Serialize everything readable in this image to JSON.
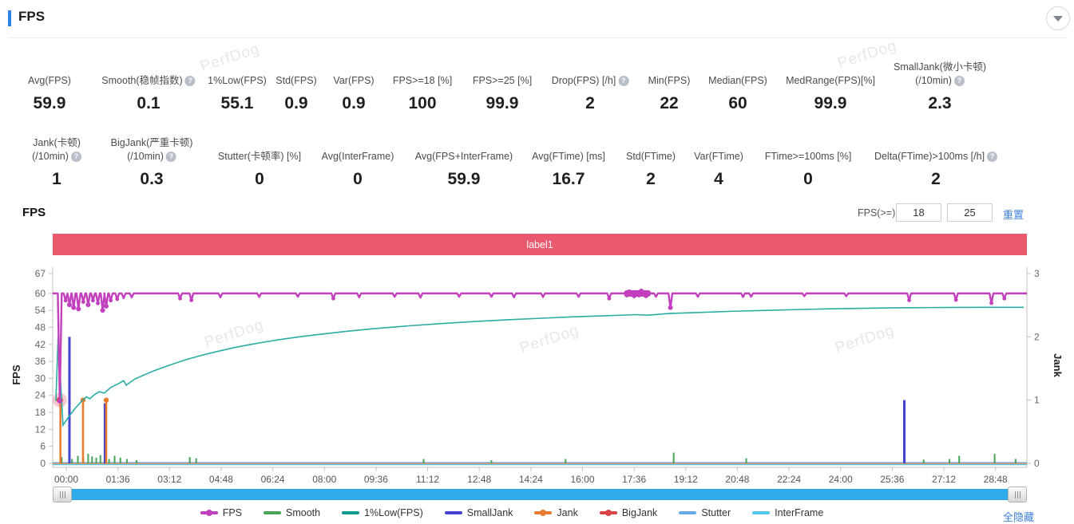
{
  "header": {
    "title": "FPS",
    "collapse_icon": "chevron-down-icon"
  },
  "watermark": "PerfDog",
  "stats": {
    "row1": [
      {
        "lines": [
          "Avg(FPS)"
        ],
        "help": false,
        "value": "59.9"
      },
      {
        "lines": [
          "Smooth(稳帧指数)"
        ],
        "help": true,
        "value": "0.1"
      },
      {
        "lines": [
          "1%Low(FPS)"
        ],
        "help": false,
        "value": "55.1"
      },
      {
        "lines": [
          "Std(FPS)"
        ],
        "help": false,
        "value": "0.9"
      },
      {
        "lines": [
          "Var(FPS)"
        ],
        "help": false,
        "value": "0.9"
      },
      {
        "lines": [
          "FPS>=18 [%]"
        ],
        "help": false,
        "value": "100"
      },
      {
        "lines": [
          "FPS>=25 [%]"
        ],
        "help": false,
        "value": "99.9"
      },
      {
        "lines": [
          "Drop(FPS) [/h]"
        ],
        "help": true,
        "value": "2"
      },
      {
        "lines": [
          "Min(FPS)"
        ],
        "help": false,
        "value": "22"
      },
      {
        "lines": [
          "Median(FPS)"
        ],
        "help": false,
        "value": "60"
      },
      {
        "lines": [
          "MedRange(FPS)[%]"
        ],
        "help": false,
        "value": "99.9"
      },
      {
        "lines": [
          "SmallJank(微小卡顿)",
          "(/10min)"
        ],
        "help": true,
        "value": "2.3"
      }
    ],
    "row2": [
      {
        "lines": [
          "Jank(卡顿)",
          "(/10min)"
        ],
        "help": true,
        "value": "1"
      },
      {
        "lines": [
          "BigJank(严重卡顿)",
          "(/10min)"
        ],
        "help": true,
        "value": "0.3"
      },
      {
        "lines": [
          "Stutter(卡顿率) [%]"
        ],
        "help": false,
        "value": "0"
      },
      {
        "lines": [
          "Avg(InterFrame)"
        ],
        "help": false,
        "value": "0"
      },
      {
        "lines": [
          "Avg(FPS+InterFrame)"
        ],
        "help": false,
        "value": "59.9"
      },
      {
        "lines": [
          "Avg(FTime) [ms]"
        ],
        "help": false,
        "value": "16.7"
      },
      {
        "lines": [
          "Std(FTime)"
        ],
        "help": false,
        "value": "2"
      },
      {
        "lines": [
          "Var(FTime)"
        ],
        "help": false,
        "value": "4"
      },
      {
        "lines": [
          "FTime>=100ms [%]"
        ],
        "help": false,
        "value": "0"
      },
      {
        "lines": [
          "Delta(FTime)>100ms [/h]"
        ],
        "help": true,
        "value": "2"
      }
    ]
  },
  "chart_section": {
    "title": "FPS",
    "filter_label": "FPS(>=)",
    "filter_min": "18",
    "filter_max": "25",
    "reset_label": "重置",
    "banner_label": "label1",
    "hide_all_label": "全隐藏"
  },
  "legend": [
    {
      "label": "FPS",
      "color": "#c23fbe",
      "dot": true
    },
    {
      "label": "Smooth",
      "color": "#48a357",
      "dot": false
    },
    {
      "label": "1%Low(FPS)",
      "color": "#12998f",
      "dot": false
    },
    {
      "label": "SmallJank",
      "color": "#4343d0",
      "dot": false
    },
    {
      "label": "Jank",
      "color": "#e87a2e",
      "dot": true
    },
    {
      "label": "BigJank",
      "color": "#d94343",
      "dot": true
    },
    {
      "label": "Stutter",
      "color": "#64a8e8",
      "dot": false
    },
    {
      "label": "InterFrame",
      "color": "#4cc8e4",
      "dot": false
    }
  ],
  "chart_data": {
    "type": "line",
    "title": "FPS",
    "x_axis": {
      "unit": "mm:ss",
      "ticks": [
        "00:00",
        "01:36",
        "03:12",
        "04:48",
        "06:24",
        "08:00",
        "09:36",
        "11:12",
        "12:48",
        "14:24",
        "16:00",
        "17:36",
        "19:12",
        "20:48",
        "22:24",
        "24:00",
        "25:36",
        "27:12",
        "28:48"
      ]
    },
    "y_left": {
      "label": "FPS",
      "ticks": [
        0,
        6,
        12,
        18,
        24,
        30,
        36,
        42,
        48,
        54,
        60,
        67
      ],
      "range": [
        0,
        67
      ]
    },
    "y_right": {
      "label": "Jank",
      "ticks": [
        0,
        1,
        2,
        3
      ],
      "range": [
        0,
        3
      ]
    },
    "grid": false,
    "legend_position": "bottom",
    "series": [
      {
        "name": "FPS",
        "axis": "left",
        "color": "#c23fbe",
        "baseline": 60,
        "dips": [
          [
            0.12,
            22
          ],
          [
            0.3,
            57.5
          ],
          [
            0.42,
            56
          ],
          [
            0.55,
            55
          ],
          [
            0.7,
            54.5
          ],
          [
            0.85,
            57
          ],
          [
            1.0,
            56
          ],
          [
            1.15,
            57.5
          ],
          [
            1.3,
            56.5
          ],
          [
            1.45,
            54
          ],
          [
            1.56,
            55.5
          ],
          [
            1.7,
            57.5
          ],
          [
            1.9,
            58
          ],
          [
            2.1,
            58.3
          ],
          [
            2.35,
            58.6
          ],
          [
            3.85,
            58.2
          ],
          [
            4.2,
            57.6
          ],
          [
            5.1,
            58.6
          ],
          [
            6.3,
            58.7
          ],
          [
            7.5,
            58.8
          ],
          [
            8.6,
            58.2
          ],
          [
            9.4,
            58.6
          ],
          [
            10.5,
            58.8
          ],
          [
            11.3,
            58.5
          ],
          [
            12.5,
            58.8
          ],
          [
            13.5,
            58.8
          ],
          [
            14.2,
            58.6
          ],
          [
            15.1,
            58.7
          ],
          [
            16.2,
            58.8
          ],
          [
            17.15,
            58.2
          ],
          [
            18.6,
            58.8
          ],
          [
            19.05,
            55
          ],
          [
            19.9,
            58.8
          ],
          [
            21.3,
            58.7
          ],
          [
            21.55,
            58.8
          ],
          [
            23.2,
            59
          ],
          [
            24.5,
            59
          ],
          [
            26.45,
            57.6
          ],
          [
            27.9,
            57.7
          ],
          [
            29.0,
            56.6
          ],
          [
            29.4,
            58.2
          ]
        ],
        "cluster": [
          17.7,
          18.35
        ]
      },
      {
        "name": "Smooth",
        "axis": "right",
        "color": "#48a357",
        "bars": [
          [
            0.18,
            0.1
          ],
          [
            0.5,
            0.07
          ],
          [
            0.68,
            0.12
          ],
          [
            0.85,
            0.09
          ],
          [
            1.0,
            0.15
          ],
          [
            1.12,
            0.11
          ],
          [
            1.25,
            0.09
          ],
          [
            1.38,
            0.13
          ],
          [
            1.52,
            0.1
          ],
          [
            1.65,
            0.07
          ],
          [
            1.82,
            0.12
          ],
          [
            2.0,
            0.09
          ],
          [
            2.2,
            0.07
          ],
          [
            2.5,
            0.05
          ],
          [
            4.15,
            0.1
          ],
          [
            4.35,
            0.08
          ],
          [
            11.4,
            0.07
          ],
          [
            13.5,
            0.05
          ],
          [
            15.8,
            0.07
          ],
          [
            19.15,
            0.17
          ],
          [
            21.4,
            0.08
          ],
          [
            26.9,
            0.06
          ],
          [
            27.7,
            0.07
          ],
          [
            28.0,
            0.12
          ],
          [
            29.1,
            0.15
          ],
          [
            29.75,
            0.07
          ]
        ]
      },
      {
        "name": "1%Low(FPS)",
        "axis": "left",
        "color": "#2aada2",
        "points": [
          [
            0.0,
            22
          ],
          [
            0.07,
            45
          ],
          [
            0.22,
            13.5
          ],
          [
            0.4,
            16.5
          ],
          [
            0.6,
            19.5
          ],
          [
            0.8,
            22
          ],
          [
            0.95,
            23.5
          ],
          [
            1.05,
            22.8
          ],
          [
            1.2,
            24.3
          ],
          [
            1.35,
            25.3
          ],
          [
            1.5,
            24.8
          ],
          [
            1.7,
            26.8
          ],
          [
            1.95,
            28.2
          ],
          [
            2.1,
            29.2
          ],
          [
            2.18,
            27.6
          ],
          [
            2.45,
            29.8
          ],
          [
            3.0,
            32.5
          ],
          [
            3.5,
            34.6
          ],
          [
            4.0,
            36.5
          ],
          [
            4.5,
            38.1
          ],
          [
            5.0,
            39.5
          ],
          [
            5.5,
            40.8
          ],
          [
            6.0,
            41.9
          ],
          [
            6.5,
            42.9
          ],
          [
            7.0,
            43.8
          ],
          [
            7.5,
            44.6
          ],
          [
            8.0,
            45.3
          ],
          [
            9.0,
            46.6
          ],
          [
            10.0,
            47.7
          ],
          [
            11.0,
            48.6
          ],
          [
            12.0,
            49.4
          ],
          [
            13.0,
            50.1
          ],
          [
            14.0,
            50.7
          ],
          [
            15.0,
            51.2
          ],
          [
            16.0,
            51.7
          ],
          [
            17.0,
            52.1
          ],
          [
            18.0,
            52.5
          ],
          [
            18.35,
            52.3
          ],
          [
            19.0,
            52.9
          ],
          [
            20.0,
            53.3
          ],
          [
            21.0,
            53.7
          ],
          [
            22.0,
            54.0
          ],
          [
            23.0,
            54.3
          ],
          [
            24.0,
            54.55
          ],
          [
            25.0,
            54.75
          ],
          [
            26.0,
            54.9
          ],
          [
            27.0,
            55.0
          ],
          [
            28.0,
            55.05
          ],
          [
            29.0,
            55.1
          ],
          [
            30.0,
            55.1
          ]
        ]
      },
      {
        "name": "SmallJank",
        "axis": "right",
        "color": "#4343d0",
        "spikes": [
          [
            0.42,
            2
          ],
          [
            1.52,
            0.95
          ],
          [
            26.3,
            1
          ]
        ]
      },
      {
        "name": "Jank",
        "axis": "right",
        "color": "#e87a2e",
        "baseline": 0,
        "spikes": [
          [
            0.14,
            1
          ],
          [
            0.84,
            1
          ],
          [
            1.56,
            1
          ]
        ]
      },
      {
        "name": "BigJank",
        "axis": "right",
        "color": "#d94343",
        "highlight_points": [
          [
            0.12,
            1
          ]
        ]
      },
      {
        "name": "Stutter",
        "axis": "right",
        "color": "#64a8e8",
        "baseline": 0
      },
      {
        "name": "InterFrame",
        "axis": "right",
        "color": "#4cc8e4",
        "baseline": 0
      }
    ]
  }
}
